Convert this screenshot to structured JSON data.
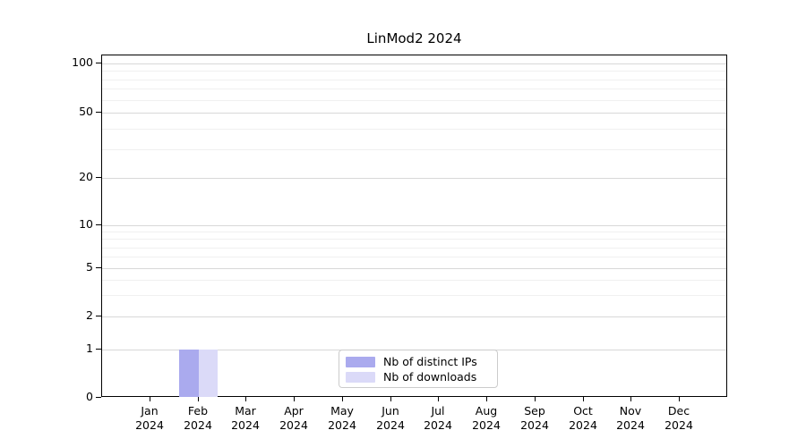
{
  "chart_data": {
    "type": "bar",
    "title": "LinMod2 2024",
    "categories": [
      "Jan 2024",
      "Feb 2024",
      "Mar 2024",
      "Apr 2024",
      "May 2024",
      "Jun 2024",
      "Jul 2024",
      "Aug 2024",
      "Sep 2024",
      "Oct 2024",
      "Nov 2024",
      "Dec 2024"
    ],
    "series": [
      {
        "name": "Nb of distinct IPs",
        "color": "#aaaaee",
        "values": [
          0,
          1,
          0,
          0,
          0,
          0,
          0,
          0,
          0,
          0,
          0,
          0
        ]
      },
      {
        "name": "Nb of downloads",
        "color": "#dbdaf8",
        "values": [
          0,
          1,
          0,
          0,
          0,
          0,
          0,
          0,
          0,
          0,
          0,
          0
        ]
      }
    ],
    "xlabel": "",
    "ylabel": "",
    "y_ticks": [
      0,
      1,
      2,
      5,
      10,
      20,
      50,
      100
    ],
    "y_minor_ticks": [
      3,
      4,
      6,
      7,
      8,
      9,
      30,
      40,
      60,
      70,
      80,
      90
    ],
    "ylim": [
      0,
      100
    ],
    "y_scale": "log-like with 0 baseline",
    "grid": "horizontal major and minor gridlines",
    "legend_position": "lower center inside plot"
  },
  "colors": {
    "major_grid": "#d8d8d8",
    "minor_grid": "#f0f0f0",
    "axis": "#000000",
    "legend_border": "#cccccc",
    "background": "#ffffff"
  }
}
